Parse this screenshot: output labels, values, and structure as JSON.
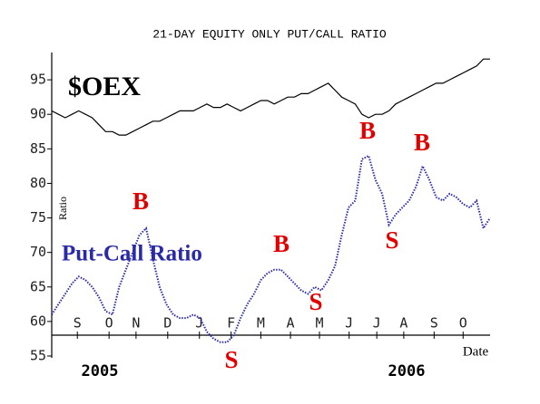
{
  "chart_data": {
    "type": "line",
    "title": "21-DAY EQUITY ONLY PUT/CALL RATIO",
    "ylabel": "Ratio",
    "xlabel": "Date",
    "x": [
      0,
      1,
      2,
      3,
      4,
      5,
      6,
      7,
      8,
      9,
      10,
      11,
      12,
      13,
      14,
      15,
      16,
      17,
      18,
      19,
      20,
      21,
      22,
      23,
      24,
      25,
      26,
      27,
      28,
      29,
      30,
      31,
      32,
      33,
      34,
      35,
      36,
      37,
      38,
      39,
      40,
      41,
      42,
      43,
      44,
      45,
      46,
      47,
      48,
      49,
      50,
      51,
      52,
      53,
      54,
      55,
      56,
      57,
      58,
      59,
      60,
      61,
      62,
      63,
      64,
      65
    ],
    "xlim": [
      0,
      65
    ],
    "xticks": [
      {
        "value": 3.8,
        "label": "S"
      },
      {
        "value": 8.5,
        "label": "O"
      },
      {
        "value": 12.5,
        "label": "N"
      },
      {
        "value": 17.2,
        "label": "D"
      },
      {
        "value": 21.9,
        "label": "J"
      },
      {
        "value": 26.6,
        "label": "F"
      },
      {
        "value": 31,
        "label": "M"
      },
      {
        "value": 35.4,
        "label": "A"
      },
      {
        "value": 39.7,
        "label": "M"
      },
      {
        "value": 44.1,
        "label": "J"
      },
      {
        "value": 48.2,
        "label": "J"
      },
      {
        "value": 52.2,
        "label": "A"
      },
      {
        "value": 56.7,
        "label": "S"
      },
      {
        "value": 61,
        "label": "O"
      }
    ],
    "ylim": [
      55,
      100
    ],
    "yticks": [
      55,
      60,
      65,
      70,
      75,
      80,
      85,
      90,
      95
    ],
    "series": [
      {
        "name": "$OEX",
        "color": "#000000",
        "values": [
          90.5,
          90,
          89.5,
          90,
          90.5,
          90,
          89.5,
          88.5,
          87.5,
          87.5,
          87,
          87,
          87.5,
          88,
          88.5,
          89,
          89,
          89.5,
          90,
          90.5,
          90.5,
          90.5,
          91,
          91.5,
          91,
          91,
          91.5,
          91,
          90.5,
          91,
          91.5,
          92,
          92,
          91.5,
          92,
          92.5,
          92.5,
          93,
          93,
          93.5,
          94,
          94.5,
          93.5,
          92.5,
          92,
          91.5,
          90,
          89.5,
          90,
          90,
          90.5,
          91.5,
          92,
          92.5,
          93,
          93.5,
          94,
          94.5,
          94.5,
          95,
          95.5,
          96,
          96.5,
          97,
          98,
          98
        ]
      },
      {
        "name": "Put-Call Ratio",
        "color": "#2a2aa8",
        "values": [
          61,
          62.5,
          64,
          65.5,
          66.5,
          66,
          65,
          63.5,
          61.5,
          61,
          65,
          67.5,
          70,
          72.5,
          73.5,
          69,
          65,
          62.5,
          61,
          60.5,
          60.5,
          61,
          60.5,
          58.5,
          57.5,
          57,
          57,
          58,
          60.5,
          62.5,
          64,
          66,
          67,
          67.5,
          67.5,
          66.5,
          65.5,
          64.5,
          64,
          65,
          64.5,
          66,
          68,
          72.5,
          76.5,
          77.5,
          83.5,
          84,
          80.5,
          78.5,
          74,
          75.5,
          76.5,
          77.5,
          79.5,
          82.5,
          80.5,
          78,
          77.5,
          78.5,
          78,
          77,
          76.5,
          77.5,
          73.5,
          75
        ]
      }
    ],
    "annotations": [
      {
        "text": "B",
        "color": "#e00000"
      },
      {
        "text": "B",
        "color": "#e00000"
      },
      {
        "text": "S",
        "color": "#e00000"
      },
      {
        "text": "B",
        "color": "#e00000"
      },
      {
        "text": "S",
        "color": "#e00000"
      },
      {
        "text": "B",
        "color": "#e00000"
      },
      {
        "text": "S",
        "color": "#e00000"
      },
      {
        "text": "2005",
        "color": "#000000"
      },
      {
        "text": "2006",
        "color": "#000000"
      }
    ]
  }
}
